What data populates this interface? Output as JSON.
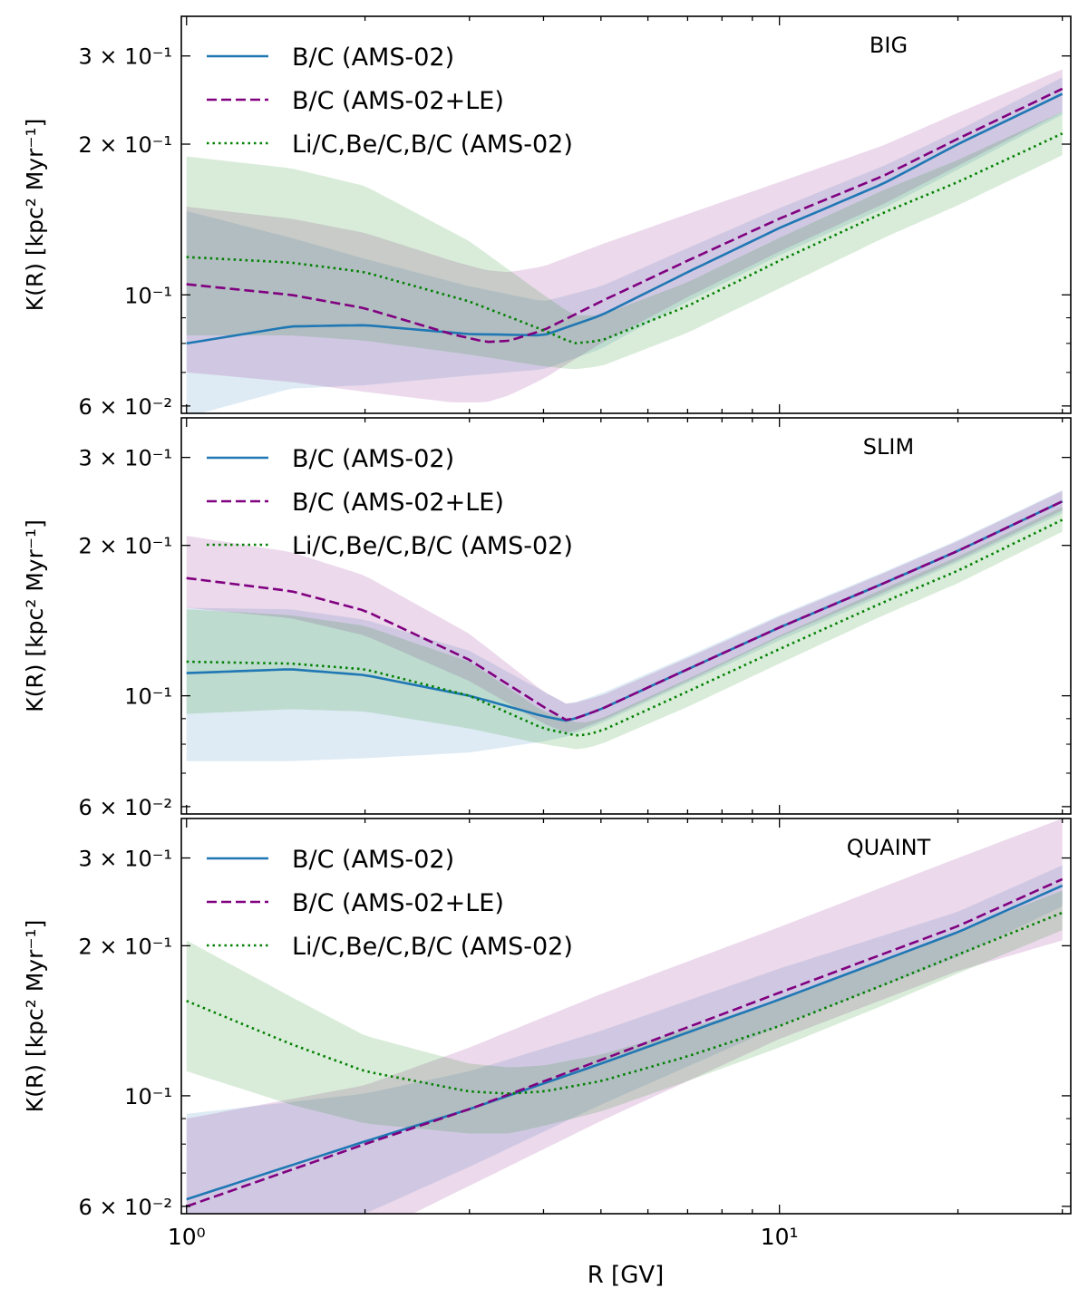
{
  "chart_data": [
    {
      "type": "line",
      "panel_label": "BIG",
      "xlabel": "R [GV]",
      "ylabel": "K(R) [kpc² Myr⁻¹]",
      "xscale": "log",
      "yscale": "log",
      "xlim": [
        0.98,
        31
      ],
      "ylim": [
        0.058,
        0.36
      ],
      "ytick_labels": [
        "6 × 10⁻²",
        "10⁻¹",
        "2 × 10⁻¹",
        "3 × 10⁻¹"
      ],
      "legend_position": "top-left",
      "series": [
        {
          "name": "B/C (AMS-02)",
          "color": "#1f77b4",
          "style": "solid",
          "x": [
            1,
            1.5,
            2,
            3,
            4,
            5,
            7,
            10,
            15,
            20,
            30
          ],
          "y": [
            0.08,
            0.0865,
            0.087,
            0.0835,
            0.083,
            0.091,
            0.111,
            0.136,
            0.167,
            0.2,
            0.252
          ],
          "band_lo": [
            0.057,
            0.065,
            0.066,
            0.069,
            0.071,
            0.078,
            0.097,
            0.12,
            0.149,
            0.178,
            0.229
          ],
          "band_hi": [
            0.147,
            0.13,
            0.118,
            0.104,
            0.097,
            0.104,
            0.124,
            0.149,
            0.181,
            0.213,
            0.272
          ]
        },
        {
          "name": "B/C (AMS-02+LE)",
          "color": "#800080",
          "style": "dashed",
          "x": [
            1,
            1.5,
            2,
            2.8,
            3.2,
            3.5,
            4,
            5,
            7,
            10,
            15,
            20,
            30
          ],
          "y": [
            0.105,
            0.1,
            0.094,
            0.0835,
            0.0805,
            0.081,
            0.085,
            0.097,
            0.117,
            0.142,
            0.173,
            0.205,
            0.258
          ],
          "band_lo": [
            0.07,
            0.067,
            0.064,
            0.061,
            0.061,
            0.063,
            0.068,
            0.08,
            0.099,
            0.122,
            0.152,
            0.181,
            0.232
          ],
          "band_hi": [
            0.15,
            0.142,
            0.133,
            0.117,
            0.112,
            0.111,
            0.114,
            0.126,
            0.145,
            0.168,
            0.199,
            0.231,
            0.282
          ]
        },
        {
          "name": "Li/C,Be/C,B/C (AMS-02)",
          "color": "#008000",
          "style": "dotted",
          "x": [
            1,
            1.5,
            2,
            3,
            4,
            4.5,
            5,
            7,
            10,
            15,
            20,
            30
          ],
          "y": [
            0.119,
            0.116,
            0.111,
            0.097,
            0.085,
            0.08,
            0.081,
            0.095,
            0.117,
            0.146,
            0.168,
            0.21
          ],
          "band_lo": [
            0.083,
            0.083,
            0.081,
            0.076,
            0.072,
            0.071,
            0.072,
            0.084,
            0.103,
            0.13,
            0.151,
            0.19
          ],
          "band_hi": [
            0.189,
            0.179,
            0.165,
            0.128,
            0.1,
            0.091,
            0.091,
            0.106,
            0.13,
            0.162,
            0.186,
            0.232
          ]
        }
      ]
    },
    {
      "type": "line",
      "panel_label": "SLIM",
      "xlabel": "R [GV]",
      "ylabel": "K(R) [kpc² Myr⁻¹]",
      "xscale": "log",
      "yscale": "log",
      "xlim": [
        0.98,
        31
      ],
      "ylim": [
        0.058,
        0.36
      ],
      "ytick_labels": [
        "6 × 10⁻²",
        "10⁻¹",
        "2 × 10⁻¹",
        "3 × 10⁻¹"
      ],
      "legend_position": "top-left",
      "series": [
        {
          "name": "B/C (AMS-02)",
          "color": "#1f77b4",
          "style": "solid",
          "x": [
            1,
            1.5,
            2,
            3,
            4,
            4.4,
            5,
            7,
            10,
            15,
            20,
            30
          ],
          "y": [
            0.111,
            0.113,
            0.11,
            0.1,
            0.091,
            0.089,
            0.094,
            0.113,
            0.137,
            0.168,
            0.195,
            0.245
          ],
          "band_lo": [
            0.074,
            0.074,
            0.075,
            0.077,
            0.081,
            0.083,
            0.088,
            0.106,
            0.129,
            0.159,
            0.185,
            0.232
          ],
          "band_hi": [
            0.15,
            0.149,
            0.142,
            0.123,
            0.102,
            0.096,
            0.101,
            0.12,
            0.145,
            0.177,
            0.205,
            0.258
          ]
        },
        {
          "name": "B/C (AMS-02+LE)",
          "color": "#800080",
          "style": "dashed",
          "x": [
            1,
            1.5,
            2,
            3,
            4,
            4.4,
            5,
            7,
            10,
            15,
            20,
            30
          ],
          "y": [
            0.172,
            0.162,
            0.148,
            0.118,
            0.095,
            0.089,
            0.094,
            0.113,
            0.137,
            0.168,
            0.195,
            0.245
          ],
          "band_lo": [
            0.15,
            0.143,
            0.132,
            0.107,
            0.088,
            0.084,
            0.089,
            0.107,
            0.131,
            0.161,
            0.187,
            0.235
          ],
          "band_hi": [
            0.209,
            0.194,
            0.174,
            0.133,
            0.102,
            0.096,
            0.1,
            0.119,
            0.144,
            0.176,
            0.204,
            0.257
          ]
        },
        {
          "name": "Li/C,Be/C,B/C (AMS-02)",
          "color": "#008000",
          "style": "dotted",
          "x": [
            1,
            1.5,
            2,
            3,
            4,
            4.6,
            5,
            7,
            10,
            15,
            20,
            30
          ],
          "y": [
            0.117,
            0.116,
            0.113,
            0.1,
            0.086,
            0.083,
            0.085,
            0.102,
            0.124,
            0.154,
            0.178,
            0.225
          ],
          "band_lo": [
            0.092,
            0.094,
            0.093,
            0.086,
            0.08,
            0.078,
            0.08,
            0.095,
            0.116,
            0.145,
            0.168,
            0.213
          ],
          "band_hi": [
            0.149,
            0.145,
            0.138,
            0.117,
            0.093,
            0.088,
            0.09,
            0.108,
            0.132,
            0.164,
            0.19,
            0.239
          ]
        }
      ]
    },
    {
      "type": "line",
      "panel_label": "QUAINT",
      "xlabel": "R [GV]",
      "ylabel": "K(R) [kpc² Myr⁻¹]",
      "xscale": "log",
      "yscale": "log",
      "xlim": [
        0.98,
        31
      ],
      "ylim": [
        0.058,
        0.36
      ],
      "xtick_labels": [
        "10⁰",
        "10¹"
      ],
      "ytick_labels": [
        "6 × 10⁻²",
        "10⁻¹",
        "2 × 10⁻¹",
        "3 × 10⁻¹"
      ],
      "legend_position": "top-left",
      "series": [
        {
          "name": "B/C (AMS-02)",
          "color": "#1f77b4",
          "style": "solid",
          "x": [
            1,
            2,
            3,
            5,
            10,
            20,
            30
          ],
          "y": [
            0.062,
            0.081,
            0.094,
            0.116,
            0.156,
            0.213,
            0.264
          ],
          "band_lo": [
            0.05,
            0.058,
            0.072,
            0.096,
            0.138,
            0.19,
            0.24
          ],
          "band_hi": [
            0.092,
            0.101,
            0.112,
            0.135,
            0.18,
            0.234,
            0.29
          ]
        },
        {
          "name": "B/C (AMS-02+LE)",
          "color": "#800080",
          "style": "dashed",
          "x": [
            1,
            2,
            3,
            5,
            10,
            20,
            30
          ],
          "y": [
            0.06,
            0.08,
            0.094,
            0.118,
            0.161,
            0.219,
            0.272
          ],
          "band_lo": [
            0.05,
            0.052,
            0.066,
            0.089,
            0.13,
            0.178,
            0.205
          ],
          "band_hi": [
            0.09,
            0.105,
            0.125,
            0.16,
            0.218,
            0.3,
            0.36
          ]
        },
        {
          "name": "Li/C,Be/C,B/C (AMS-02)",
          "color": "#008000",
          "style": "dotted",
          "x": [
            1,
            1.5,
            2,
            3,
            3.5,
            4,
            5,
            7,
            10,
            15,
            20,
            30
          ],
          "y": [
            0.155,
            0.127,
            0.112,
            0.102,
            0.101,
            0.102,
            0.107,
            0.12,
            0.138,
            0.167,
            0.192,
            0.233
          ],
          "band_lo": [
            0.112,
            0.096,
            0.088,
            0.084,
            0.084,
            0.087,
            0.093,
            0.107,
            0.125,
            0.152,
            0.176,
            0.215
          ],
          "band_hi": [
            0.205,
            0.158,
            0.132,
            0.116,
            0.114,
            0.115,
            0.121,
            0.136,
            0.156,
            0.187,
            0.214,
            0.258
          ]
        }
      ]
    }
  ]
}
